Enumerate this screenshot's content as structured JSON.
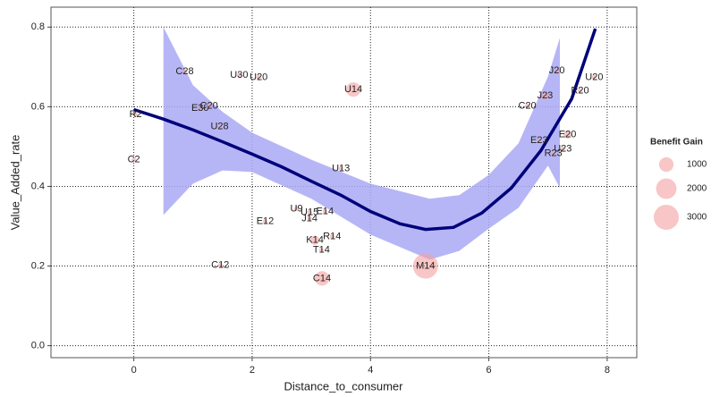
{
  "chart_data": {
    "type": "scatter",
    "xlabel": "Distance_to_consumer",
    "ylabel": "Value_Added_rate",
    "xlim": [
      -1.4,
      8.5
    ],
    "ylim": [
      -0.03,
      0.85
    ],
    "xticks": [
      0,
      2,
      4,
      6,
      8
    ],
    "yticks": [
      {
        "value": 0,
        "label": "0.0"
      },
      0.2,
      0.4,
      0.6,
      0.8
    ],
    "grid": true,
    "color": "#f4a0a0",
    "curve_color": "#00007a",
    "band_color": "#a9a9f4",
    "points": [
      {
        "label": "C28",
        "x": 0.86,
        "y": 0.688,
        "size": 100
      },
      {
        "label": "U30",
        "x": 1.78,
        "y": 0.679,
        "size": 100
      },
      {
        "label": "U20",
        "x": 2.11,
        "y": 0.674,
        "size": 100
      },
      {
        "label": "U14",
        "x": 3.71,
        "y": 0.643,
        "size": 1000
      },
      {
        "label": "E30",
        "x": 1.12,
        "y": 0.596,
        "size": 100
      },
      {
        "label": "C20",
        "x": 1.27,
        "y": 0.602,
        "size": 100
      },
      {
        "label": "R2",
        "x": 0.03,
        "y": 0.58,
        "size": 100
      },
      {
        "label": "U28",
        "x": 1.45,
        "y": 0.55,
        "size": 100
      },
      {
        "label": "C2",
        "x": 0.0,
        "y": 0.467,
        "size": 100
      },
      {
        "label": "U13",
        "x": 3.5,
        "y": 0.445,
        "size": 100
      },
      {
        "label": "E12",
        "x": 2.22,
        "y": 0.312,
        "size": 100
      },
      {
        "label": "U9",
        "x": 2.75,
        "y": 0.344,
        "size": 100
      },
      {
        "label": "U15",
        "x": 2.97,
        "y": 0.335,
        "size": 100
      },
      {
        "label": "E14",
        "x": 3.23,
        "y": 0.337,
        "size": 100
      },
      {
        "label": "J14",
        "x": 2.97,
        "y": 0.319,
        "size": 100
      },
      {
        "label": "K14",
        "x": 3.06,
        "y": 0.265,
        "size": 400
      },
      {
        "label": "R14",
        "x": 3.35,
        "y": 0.274,
        "size": 100
      },
      {
        "label": "T14",
        "x": 3.17,
        "y": 0.24,
        "size": 100
      },
      {
        "label": "C12",
        "x": 1.46,
        "y": 0.202,
        "size": 100
      },
      {
        "label": "C14",
        "x": 3.18,
        "y": 0.169,
        "size": 1000
      },
      {
        "label": "M14",
        "x": 4.93,
        "y": 0.2,
        "size": 3000
      },
      {
        "label": "J20",
        "x": 7.15,
        "y": 0.69,
        "size": 100
      },
      {
        "label": "U20",
        "x": 7.78,
        "y": 0.674,
        "size": 100
      },
      {
        "label": "R20",
        "x": 7.54,
        "y": 0.64,
        "size": 100
      },
      {
        "label": "J23",
        "x": 6.95,
        "y": 0.627,
        "size": 300
      },
      {
        "label": "C20",
        "x": 6.65,
        "y": 0.602,
        "size": 100
      },
      {
        "label": "E20",
        "x": 7.33,
        "y": 0.53,
        "size": 300
      },
      {
        "label": "E23",
        "x": 6.85,
        "y": 0.515,
        "size": 100
      },
      {
        "label": "U23",
        "x": 7.25,
        "y": 0.494,
        "size": 100
      },
      {
        "label": "R23",
        "x": 7.09,
        "y": 0.483,
        "size": 100
      }
    ],
    "smooth": {
      "x": [
        0,
        0.5,
        1,
        1.5,
        2,
        2.5,
        3,
        3.5,
        4,
        4.5,
        4.93,
        5.4,
        5.88,
        6.38,
        6.88,
        7.4,
        7.8
      ],
      "y": [
        0.593,
        0.569,
        0.542,
        0.512,
        0.481,
        0.449,
        0.413,
        0.378,
        0.337,
        0.306,
        0.292,
        0.297,
        0.333,
        0.396,
        0.49,
        0.62,
        0.796
      ]
    },
    "band": {
      "x": [
        0.5,
        1,
        1.5,
        2,
        3,
        4,
        5,
        5.5,
        6,
        6.5,
        7,
        7.2
      ],
      "lower": [
        0.328,
        0.407,
        0.44,
        0.436,
        0.369,
        0.279,
        0.216,
        0.238,
        0.294,
        0.346,
        0.452,
        0.396
      ],
      "upper": [
        0.8,
        0.654,
        0.587,
        0.535,
        0.467,
        0.407,
        0.369,
        0.378,
        0.429,
        0.508,
        0.676,
        0.773
      ]
    },
    "legend": {
      "title": "Benefit Gain",
      "sizes": [
        1000,
        2000,
        3000
      ]
    }
  }
}
